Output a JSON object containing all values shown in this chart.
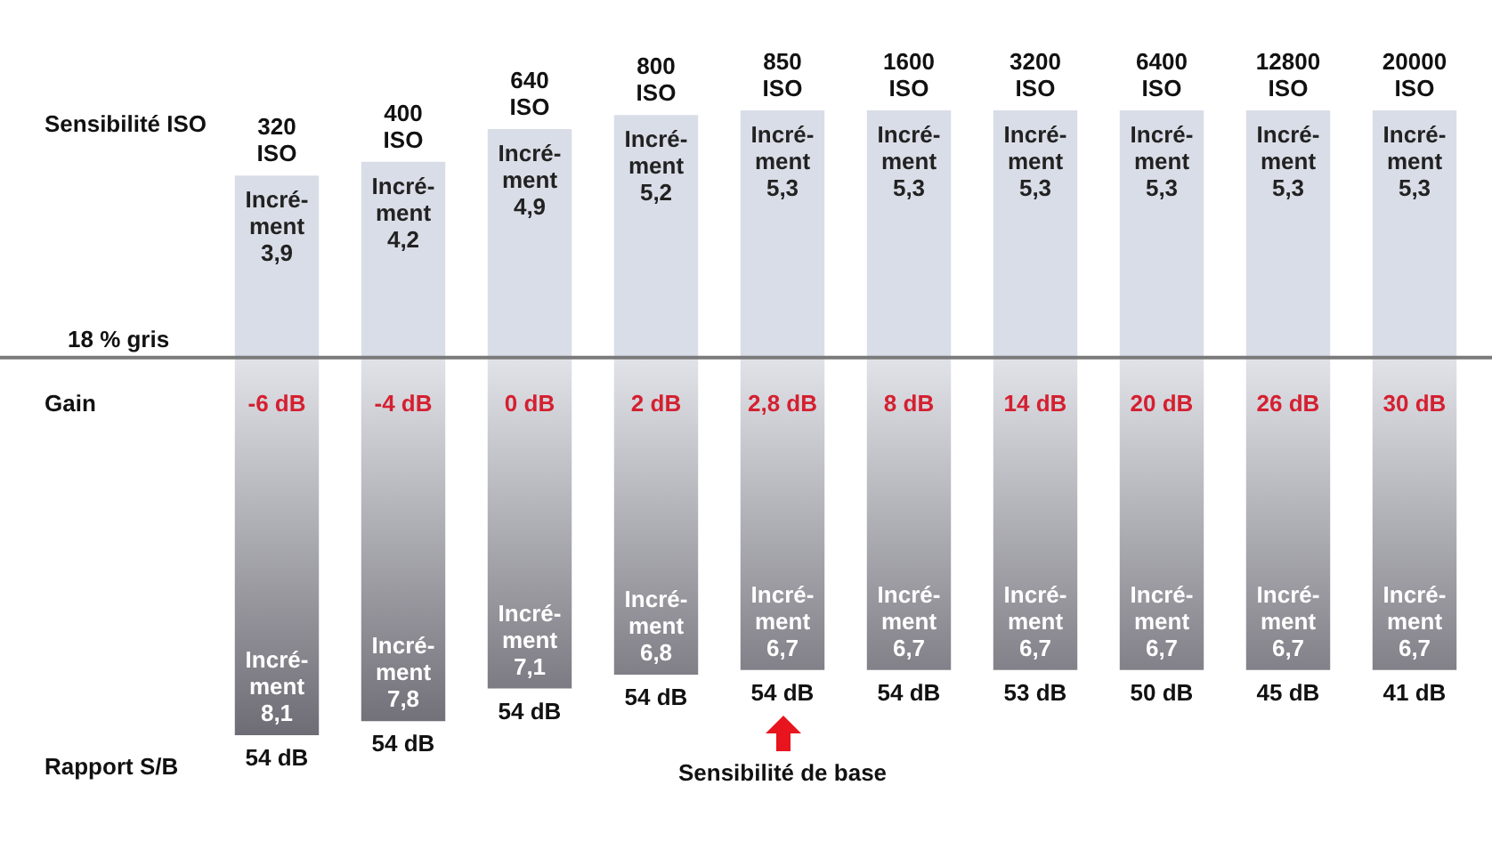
{
  "chart_data": {
    "type": "bar",
    "stacked": true,
    "legend": false,
    "tick_labels": "x",
    "categories": [
      "320 ISO",
      "400 ISO",
      "640 ISO",
      "800 ISO",
      "850 ISO",
      "1600 ISO",
      "3200 ISO",
      "6400 ISO",
      "12800 ISO",
      "20000 ISO"
    ],
    "series": [
      {
        "color": "#d9dde7",
        "values": [
          3.9,
          4.2,
          4.9,
          5.2,
          5.3,
          5.3,
          5.3,
          5.3,
          5.3,
          5.3
        ],
        "value_labels": [
          "Incré-\nment\n3,9",
          "Incré-\nment\n4,2",
          "Incré-\nment\n4,9",
          "Incré-\nment\n5,2",
          "Incré-\nment\n5,3",
          "Incré-\nment\n5,3",
          "Incré-\nment\n5,3",
          "Incré-\nment\n5,3",
          "Incré-\nment\n5,3",
          "Incré-\nment\n5,3"
        ]
      },
      {
        "color": "#6e6c74",
        "values": [
          -8.1,
          -7.8,
          -7.1,
          -6.8,
          -6.7,
          -6.7,
          -6.7,
          -6.7,
          -6.7,
          -6.7
        ],
        "value_labels": [
          "Incré-\nment\n8,1",
          "Incré-\nment\n7,8",
          "Incré-\nment\n7,1",
          "Incré-\nment\n6,8",
          "Incré-\nment\n6,7",
          "Incré-\nment\n6,7",
          "Incré-\nment\n6,7",
          "Incré-\nment\n6,7",
          "Incré-\nment\n6,7",
          "Incré-\nment\n6,7"
        ]
      }
    ],
    "ref_lines": [
      {
        "axis": "y",
        "value": 0,
        "label": "18 % gris",
        "color": "#7a7a7a"
      }
    ],
    "annotations": [
      "Sensibilité ISO",
      "Gain",
      "Rapport S/B",
      "-6 dB",
      "-4 dB",
      "0 dB",
      "2 dB",
      "2,8 dB",
      "8 dB",
      "14 dB",
      "20 dB",
      "26 dB",
      "30 dB",
      "54 dB",
      "54 dB",
      "54 dB",
      "54 dB",
      "54 dB",
      "54 dB",
      "53 dB",
      "50 dB",
      "45 dB",
      "41 dB",
      "Sensibilité de base"
    ]
  }
}
